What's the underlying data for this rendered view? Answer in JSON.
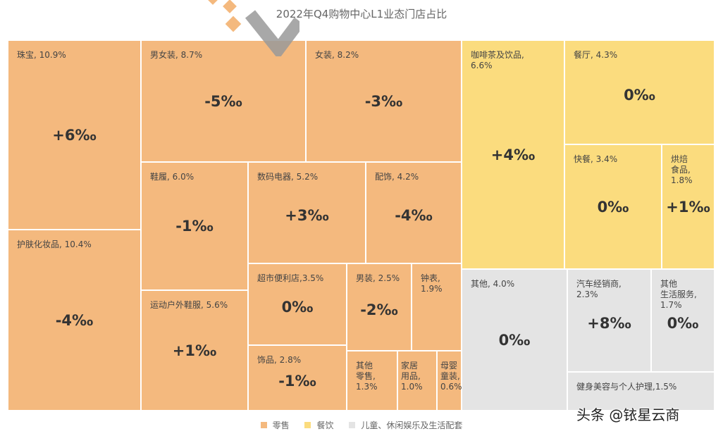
{
  "chart_data": {
    "type": "treemap",
    "title": "2022年Q4购物中心L1业态门店占比",
    "groups": [
      {
        "name": "零售",
        "color": "#f4b97e"
      },
      {
        "name": "餐饮",
        "color": "#fbdc7e"
      },
      {
        "name": "儿童、休闲娱乐及生活配套",
        "color": "#e4e4e4"
      }
    ],
    "items": [
      {
        "label": "珠宝, 10.9%",
        "name": "珠宝",
        "share": 10.9,
        "change": "+6‰",
        "group": 0
      },
      {
        "label": "护肤化妆品, 10.4%",
        "name": "护肤化妆品",
        "share": 10.4,
        "change": "-4‰",
        "group": 0
      },
      {
        "label": "男女装, 8.7%",
        "name": "男女装",
        "share": 8.7,
        "change": "-5‰",
        "group": 0
      },
      {
        "label": "女装, 8.2%",
        "name": "女装",
        "share": 8.2,
        "change": "-3‰",
        "group": 0
      },
      {
        "label": "鞋履, 6.0%",
        "name": "鞋履",
        "share": 6.0,
        "change": "-1‰",
        "group": 0
      },
      {
        "label": "运动户外鞋服, 5.6%",
        "name": "运动户外鞋服",
        "share": 5.6,
        "change": "+1‰",
        "group": 0
      },
      {
        "label": "数码电器, 5.2%",
        "name": "数码电器",
        "share": 5.2,
        "change": "+3‰",
        "group": 0
      },
      {
        "label": "配饰, 4.2%",
        "name": "配饰",
        "share": 4.2,
        "change": "-4‰",
        "group": 0
      },
      {
        "label": "超市便利店,3.5%",
        "name": "超市便利店",
        "share": 3.5,
        "change": "0‰",
        "group": 0
      },
      {
        "label": "饰品, 2.8%",
        "name": "饰品",
        "share": 2.8,
        "change": "-1‰",
        "group": 0
      },
      {
        "label": "男装, 2.5%",
        "name": "男装",
        "share": 2.5,
        "change": "-2‰",
        "group": 0
      },
      {
        "label": "钟表,\n1.9%",
        "name": "钟表",
        "share": 1.9,
        "change": "",
        "group": 0
      },
      {
        "label": "其他\n零售,\n1.3%",
        "name": "其他零售",
        "share": 1.3,
        "change": "",
        "group": 0
      },
      {
        "label": "家居\n用品,\n1.0%",
        "name": "家居用品",
        "share": 1.0,
        "change": "",
        "group": 0
      },
      {
        "label": "母婴\n童装,\n0.6%",
        "name": "母婴童装",
        "share": 0.6,
        "change": "",
        "group": 0
      },
      {
        "label": "咖啡茶及饮品,\n6.6%",
        "name": "咖啡茶及饮品",
        "share": 6.6,
        "change": "+4‰",
        "group": 1
      },
      {
        "label": "餐厅, 4.3%",
        "name": "餐厅",
        "share": 4.3,
        "change": "0‰",
        "group": 1
      },
      {
        "label": "快餐, 3.4%",
        "name": "快餐",
        "share": 3.4,
        "change": "0‰",
        "group": 1
      },
      {
        "label": "烘焙\n食品,\n1.8%",
        "name": "烘焙食品",
        "share": 1.8,
        "change": "+1‰",
        "group": 1
      },
      {
        "label": "其他, 4.0%",
        "name": "其他",
        "share": 4.0,
        "change": "0‰",
        "group": 2
      },
      {
        "label": "汽车经销商,\n2.3%",
        "name": "汽车经销商",
        "share": 2.3,
        "change": "+8‰",
        "group": 2
      },
      {
        "label": "其他\n生活服务,\n1.7%",
        "name": "其他生活服务",
        "share": 1.7,
        "change": "0‰",
        "group": 2
      },
      {
        "label": "健身美容与个人护理,1.5%",
        "name": "健身美容与个人护理",
        "share": 1.5,
        "change": "",
        "group": 2
      }
    ]
  },
  "watermark": "头条 @铱星云商"
}
